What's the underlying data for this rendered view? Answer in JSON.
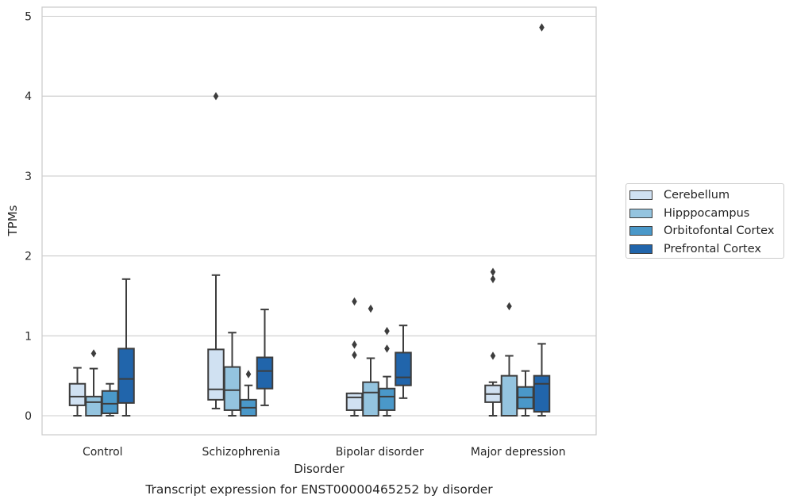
{
  "chart_data": {
    "type": "box",
    "title": "Transcript expression for ENST00000465252 by disorder",
    "xlabel": "Disorder",
    "ylabel": "TPMs",
    "ylim": [
      -0.23,
      5.11
    ],
    "yticks": [
      0,
      1,
      2,
      3,
      4,
      5
    ],
    "grid": true,
    "legend_position": "right",
    "categories": [
      "Control",
      "Schizophrenia",
      "Bipolar disorder",
      "Major depression"
    ],
    "series": [
      {
        "name": "Cerebellum",
        "color": "#d0e1f2",
        "boxes": [
          {
            "whislo": 0.0,
            "q1": 0.13,
            "median": 0.24,
            "q3": 0.4,
            "whishi": 0.6,
            "fliers": []
          },
          {
            "whislo": 0.09,
            "q1": 0.2,
            "median": 0.33,
            "q3": 0.83,
            "whishi": 1.76,
            "fliers": [
              4.0
            ]
          },
          {
            "whislo": 0.0,
            "q1": 0.07,
            "median": 0.23,
            "q3": 0.28,
            "whishi": 0.28,
            "fliers": [
              0.76,
              0.89,
              1.43
            ]
          },
          {
            "whislo": 0.0,
            "q1": 0.17,
            "median": 0.27,
            "q3": 0.38,
            "whishi": 0.42,
            "fliers": [
              0.75,
              1.71,
              1.8
            ]
          }
        ]
      },
      {
        "name": "Hipppocampus",
        "color": "#94c4df",
        "boxes": [
          {
            "whislo": 0.0,
            "q1": 0.0,
            "median": 0.17,
            "q3": 0.24,
            "whishi": 0.59,
            "fliers": [
              0.78
            ]
          },
          {
            "whislo": 0.0,
            "q1": 0.07,
            "median": 0.32,
            "q3": 0.61,
            "whishi": 1.04,
            "fliers": []
          },
          {
            "whislo": 0.0,
            "q1": 0.0,
            "median": 0.29,
            "q3": 0.42,
            "whishi": 0.72,
            "fliers": [
              1.34
            ]
          },
          {
            "whislo": 0.0,
            "q1": 0.0,
            "median": 0.0,
            "q3": 0.5,
            "whishi": 0.75,
            "fliers": [
              1.37
            ]
          }
        ]
      },
      {
        "name": "Orbitofontal Cortex",
        "color": "#4a98c9",
        "boxes": [
          {
            "whislo": 0.0,
            "q1": 0.03,
            "median": 0.15,
            "q3": 0.31,
            "whishi": 0.4,
            "fliers": []
          },
          {
            "whislo": 0.0,
            "q1": 0.0,
            "median": 0.1,
            "q3": 0.2,
            "whishi": 0.38,
            "fliers": [
              0.52
            ]
          },
          {
            "whislo": 0.0,
            "q1": 0.07,
            "median": 0.24,
            "q3": 0.34,
            "whishi": 0.49,
            "fliers": [
              0.84,
              1.06
            ]
          },
          {
            "whislo": 0.0,
            "q1": 0.09,
            "median": 0.23,
            "q3": 0.36,
            "whishi": 0.56,
            "fliers": []
          }
        ]
      },
      {
        "name": "Prefrontal Cortex",
        "color": "#2165ab",
        "boxes": [
          {
            "whislo": 0.0,
            "q1": 0.16,
            "median": 0.46,
            "q3": 0.84,
            "whishi": 1.71,
            "fliers": []
          },
          {
            "whislo": 0.13,
            "q1": 0.34,
            "median": 0.56,
            "q3": 0.73,
            "whishi": 1.33,
            "fliers": []
          },
          {
            "whislo": 0.22,
            "q1": 0.38,
            "median": 0.48,
            "q3": 0.79,
            "whishi": 1.13,
            "fliers": []
          },
          {
            "whislo": 0.0,
            "q1": 0.05,
            "median": 0.4,
            "q3": 0.5,
            "whishi": 0.9,
            "fliers": [
              4.86
            ]
          }
        ]
      }
    ]
  }
}
